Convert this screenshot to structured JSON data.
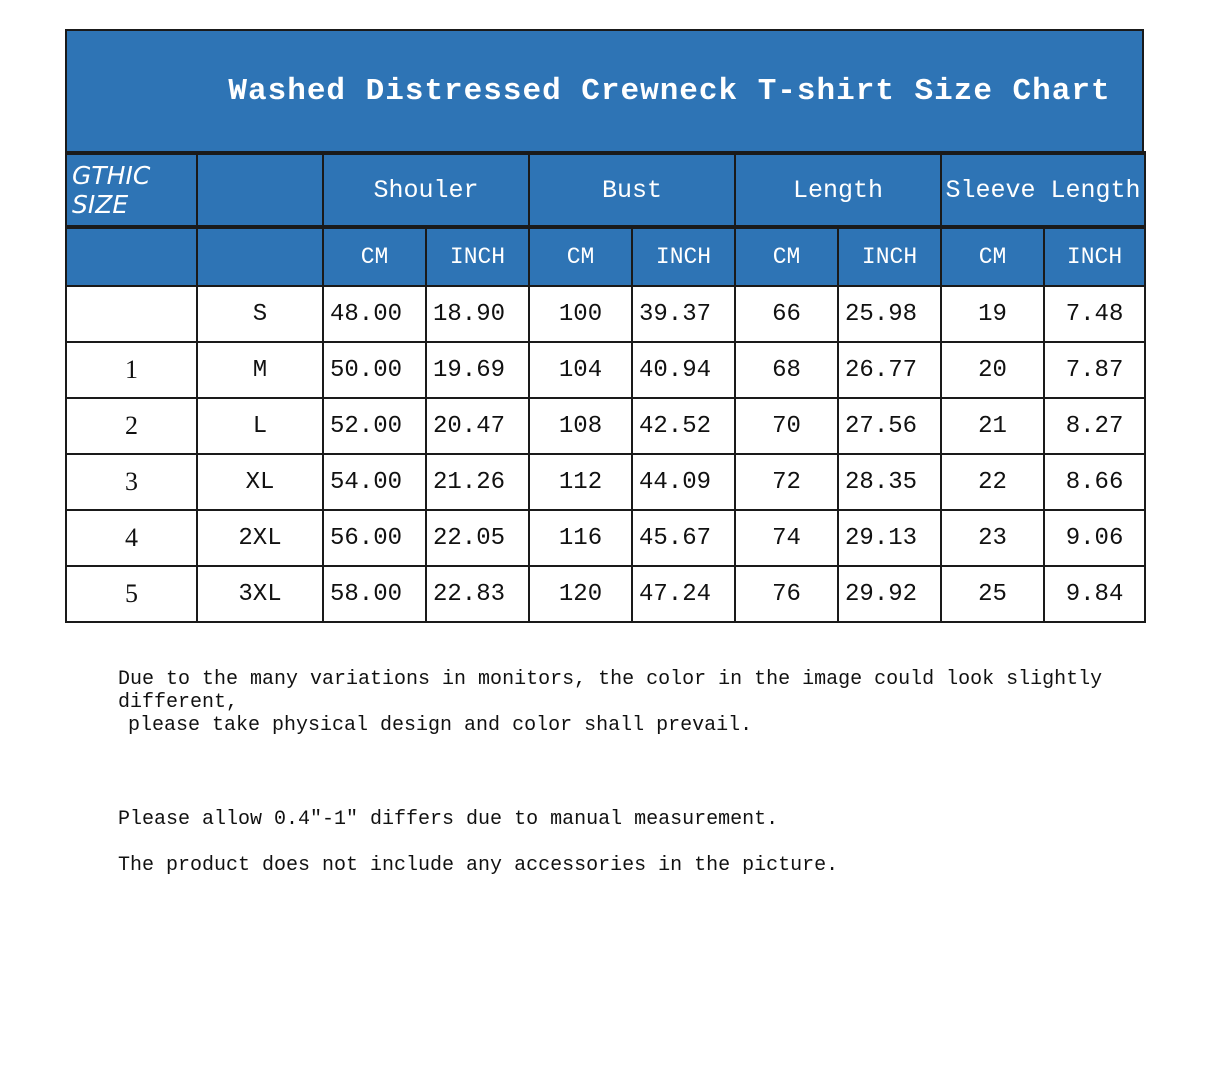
{
  "title": "Washed Distressed Crewneck T-shirt Size Chart",
  "header": {
    "label": "GTHIC SIZE",
    "groups": [
      "Shouler",
      "Bust",
      "Length",
      "Sleeve Length"
    ],
    "units": [
      "CM",
      "INCH",
      "CM",
      "INCH",
      "CM",
      "INCH",
      "CM",
      "INCH"
    ]
  },
  "rows": [
    {
      "index": "",
      "size": "S",
      "values": [
        "48.00",
        "18.90",
        "100",
        "39.37",
        "66",
        "25.98",
        "19",
        "7.48"
      ]
    },
    {
      "index": "1",
      "size": "M",
      "values": [
        "50.00",
        "19.69",
        "104",
        "40.94",
        "68",
        "26.77",
        "20",
        "7.87"
      ]
    },
    {
      "index": "2",
      "size": "L",
      "values": [
        "52.00",
        "20.47",
        "108",
        "42.52",
        "70",
        "27.56",
        "21",
        "8.27"
      ]
    },
    {
      "index": "3",
      "size": "XL",
      "values": [
        "54.00",
        "21.26",
        "112",
        "44.09",
        "72",
        "28.35",
        "22",
        "8.66"
      ]
    },
    {
      "index": "4",
      "size": "2XL",
      "values": [
        "56.00",
        "22.05",
        "116",
        "45.67",
        "74",
        "29.13",
        "23",
        "9.06"
      ]
    },
    {
      "index": "5",
      "size": "3XL",
      "values": [
        "58.00",
        "22.83",
        "120",
        "47.24",
        "76",
        "29.92",
        "25",
        "9.84"
      ]
    }
  ],
  "notes": [
    "Due to the many variations in monitors, the color in the image could look slightly different,",
    " please take physical design and color shall prevail.",
    "Please allow 0.4\"-1\" differs due to manual measurement.",
    "The product does not include any accessories in the picture."
  ],
  "colors": {
    "header_blue": "#2e74b5"
  }
}
